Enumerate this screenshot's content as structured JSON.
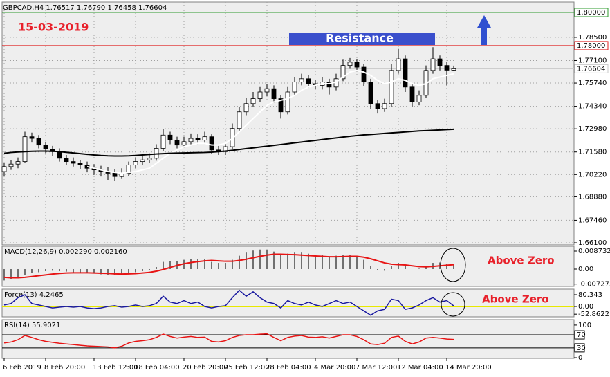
{
  "chart_data": [
    {
      "type": "candlestick",
      "title": "GBPCAD,H4  1.76517 1.76790 1.76458 1.76604",
      "date_label": "15-03-2019",
      "resistance_label": "Resistance",
      "categories": [
        "6 Feb 2019",
        null,
        null,
        null,
        null,
        null,
        "8 Feb 20:00",
        null,
        null,
        null,
        null,
        null,
        null,
        "13 Feb 12:00",
        null,
        null,
        null,
        null,
        null,
        "18 Feb 04:00",
        null,
        null,
        null,
        null,
        null,
        null,
        "20 Feb 20:00",
        null,
        null,
        null,
        null,
        null,
        "25 Feb 12:00",
        null,
        null,
        null,
        null,
        null,
        "28 Feb 04:00",
        null,
        null,
        null,
        null,
        null,
        null,
        "4 Mar 20:00",
        null,
        null,
        null,
        null,
        null,
        "7 Mar 12:00",
        null,
        null,
        null,
        null,
        null,
        "12 Mar 04:00",
        null,
        null,
        null,
        null,
        null,
        null,
        "14 Mar 20:00",
        null
      ],
      "open": [
        1.704,
        1.707,
        1.7085,
        1.71,
        1.725,
        1.724,
        1.72,
        1.7175,
        1.716,
        1.712,
        1.71,
        1.709,
        1.708,
        1.706,
        1.705,
        1.704,
        1.703,
        1.701,
        1.703,
        1.708,
        1.71,
        1.711,
        1.712,
        1.718,
        1.726,
        1.723,
        1.72,
        1.722,
        1.724,
        1.723,
        1.725,
        1.717,
        1.716,
        1.719,
        1.73,
        1.74,
        1.745,
        1.748,
        1.752,
        1.754,
        1.748,
        1.74,
        1.752,
        1.758,
        1.76,
        1.757,
        1.756,
        1.758,
        1.755,
        1.76,
        1.768,
        1.77,
        1.767,
        1.758,
        1.745,
        1.742,
        1.745,
        1.765,
        1.772,
        1.755,
        1.746,
        1.75,
        1.765,
        1.772,
        1.768,
        1.76517
      ],
      "high": [
        1.7095,
        1.711,
        1.7125,
        1.728,
        1.7275,
        1.726,
        1.722,
        1.7195,
        1.718,
        1.714,
        1.7125,
        1.711,
        1.71,
        1.7085,
        1.7075,
        1.7065,
        1.7055,
        1.706,
        1.71,
        1.7125,
        1.7135,
        1.715,
        1.7205,
        1.7295,
        1.728,
        1.725,
        1.725,
        1.727,
        1.7265,
        1.728,
        1.7265,
        1.7195,
        1.7215,
        1.733,
        1.743,
        1.7485,
        1.752,
        1.755,
        1.757,
        1.756,
        1.75,
        1.755,
        1.761,
        1.763,
        1.762,
        1.7595,
        1.761,
        1.76,
        1.763,
        1.7715,
        1.7725,
        1.772,
        1.769,
        1.76,
        1.747,
        1.748,
        1.769,
        1.778,
        1.774,
        1.757,
        1.753,
        1.768,
        1.779,
        1.774,
        1.77,
        1.7679
      ],
      "low": [
        1.7015,
        1.705,
        1.706,
        1.709,
        1.7215,
        1.718,
        1.715,
        1.7135,
        1.71,
        1.708,
        1.707,
        1.7055,
        1.7035,
        1.702,
        1.701,
        1.699,
        1.6985,
        1.6995,
        1.7015,
        1.706,
        1.708,
        1.709,
        1.7105,
        1.7165,
        1.7205,
        1.718,
        1.7185,
        1.72,
        1.7205,
        1.721,
        1.7145,
        1.714,
        1.714,
        1.7175,
        1.7285,
        1.738,
        1.743,
        1.746,
        1.7495,
        1.7455,
        1.736,
        1.7385,
        1.75,
        1.756,
        1.7545,
        1.7535,
        1.7535,
        1.7505,
        1.753,
        1.7585,
        1.766,
        1.7645,
        1.7555,
        1.742,
        1.739,
        1.74,
        1.743,
        1.763,
        1.752,
        1.743,
        1.744,
        1.7485,
        1.763,
        1.765,
        1.756,
        1.76458
      ],
      "close": [
        1.707,
        1.7085,
        1.71,
        1.725,
        1.724,
        1.72,
        1.7175,
        1.716,
        1.712,
        1.71,
        1.709,
        1.708,
        1.706,
        1.705,
        1.704,
        1.703,
        1.701,
        1.703,
        1.708,
        1.71,
        1.711,
        1.712,
        1.718,
        1.726,
        1.723,
        1.72,
        1.722,
        1.724,
        1.723,
        1.725,
        1.717,
        1.716,
        1.719,
        1.73,
        1.74,
        1.745,
        1.748,
        1.752,
        1.754,
        1.748,
        1.74,
        1.752,
        1.758,
        1.76,
        1.757,
        1.756,
        1.758,
        1.755,
        1.76,
        1.768,
        1.77,
        1.767,
        1.758,
        1.745,
        1.742,
        1.745,
        1.765,
        1.772,
        1.755,
        1.746,
        1.75,
        1.765,
        1.772,
        1.768,
        1.76517,
        1.76604
      ],
      "up_color": "#ffffff",
      "down_color": "#000000",
      "series": [
        {
          "color": "#ffffff",
          "values": [
            null,
            null,
            null,
            null,
            null,
            null,
            null,
            null,
            null,
            null,
            null,
            null,
            1.707,
            1.706,
            1.705,
            1.704,
            1.7035,
            1.703,
            1.7035,
            1.704,
            1.705,
            1.706,
            1.709,
            1.712,
            1.715,
            1.717,
            1.719,
            1.72,
            1.721,
            1.721,
            1.72,
            1.72,
            1.721,
            1.724,
            1.728,
            1.732,
            1.736,
            1.74,
            1.744,
            1.746,
            1.747,
            1.748,
            1.75,
            1.753,
            1.755,
            1.756,
            1.757,
            1.757,
            1.758,
            1.761,
            1.764,
            1.765,
            1.764,
            1.762,
            1.759,
            1.757,
            1.758,
            1.76,
            1.759,
            1.757,
            1.756,
            1.757,
            1.76,
            1.761,
            1.762,
            1.763
          ]
        },
        {
          "color": "#000000",
          "values": [
            1.715,
            1.7155,
            1.7158,
            1.716,
            1.7162,
            1.7163,
            1.7163,
            1.7162,
            1.716,
            1.7156,
            1.7152,
            1.7148,
            1.7144,
            1.714,
            1.7137,
            1.7135,
            1.7134,
            1.7134,
            1.7135,
            1.7137,
            1.714,
            1.7143,
            1.7146,
            1.7148,
            1.715,
            1.7151,
            1.7152,
            1.7153,
            1.7154,
            1.7155,
            1.7157,
            1.716,
            1.7163,
            1.7168,
            1.7173,
            1.7178,
            1.7183,
            1.7188,
            1.7193,
            1.7198,
            1.7203,
            1.7208,
            1.7213,
            1.7218,
            1.7223,
            1.7228,
            1.7233,
            1.7238,
            1.7243,
            1.7248,
            1.7253,
            1.7257,
            1.7261,
            1.7264,
            1.7267,
            1.727,
            1.7273,
            1.7276,
            1.7279,
            1.7282,
            1.7285,
            1.7287,
            1.7289,
            1.7291,
            1.7293,
            1.7295
          ]
        }
      ],
      "levels": [
        {
          "value": 1.8,
          "label": "1.80000",
          "color": "#2e9b2e"
        },
        {
          "value": 1.78,
          "label": "1.78000",
          "color": "#e02020"
        },
        {
          "value": 1.76604,
          "label": "1.76604",
          "color": "#c8c8c8"
        }
      ],
      "ylim": [
        1.65975,
        1.80626
      ],
      "yticks": [
        {
          "value": 1.785,
          "label": "1.78500"
        },
        {
          "value": 1.771,
          "label": "1.77100"
        },
        {
          "value": 1.7574,
          "label": "1.75740"
        },
        {
          "value": 1.7434,
          "label": "1.74340"
        },
        {
          "value": 1.7298,
          "label": "1.72980"
        },
        {
          "value": 1.7158,
          "label": "1.71580"
        },
        {
          "value": 1.7022,
          "label": "1.70220"
        },
        {
          "value": 1.6888,
          "label": "1.68880"
        },
        {
          "value": 1.6746,
          "label": "1.67460"
        },
        {
          "value": 1.661,
          "label": "1.66100"
        }
      ],
      "grid": true
    },
    {
      "type": "macd",
      "title": "MACD(12,26,9) 0.002290 0.002160",
      "annotation": "Above Zero",
      "histogram": {
        "color": "#707070",
        "values": [
          -0.0055,
          -0.005,
          -0.0045,
          -0.003,
          -0.002,
          -0.0015,
          -0.001,
          -0.0008,
          -0.001,
          -0.0012,
          -0.0015,
          -0.0018,
          -0.002,
          -0.0022,
          -0.0025,
          -0.0027,
          -0.003,
          -0.0028,
          -0.002,
          -0.0015,
          -0.001,
          -0.0005,
          0.001,
          0.0035,
          0.004,
          0.004,
          0.0045,
          0.005,
          0.0048,
          0.005,
          0.0035,
          0.003,
          0.003,
          0.0045,
          0.0065,
          0.008,
          0.009,
          0.0095,
          0.0095,
          0.0085,
          0.007,
          0.0075,
          0.008,
          0.008,
          0.0075,
          0.007,
          0.0068,
          0.0062,
          0.0065,
          0.007,
          0.007,
          0.0062,
          0.0045,
          0.0015,
          -0.0005,
          -0.0008,
          0.0015,
          0.003,
          0.0015,
          0.0,
          0.0002,
          0.0015,
          0.003,
          0.0032,
          0.0025,
          0.00229
        ]
      },
      "signal": {
        "color": "#e81414",
        "values": [
          -0.004,
          -0.0042,
          -0.0042,
          -0.004,
          -0.0036,
          -0.0032,
          -0.0028,
          -0.0024,
          -0.0021,
          -0.0019,
          -0.0018,
          -0.0018,
          -0.0018,
          -0.0019,
          -0.002,
          -0.0021,
          -0.0023,
          -0.0024,
          -0.0023,
          -0.0022,
          -0.0019,
          -0.0016,
          -0.001,
          -0.0002,
          0.0008,
          0.0018,
          0.0026,
          0.0032,
          0.0036,
          0.004,
          0.0042,
          0.004,
          0.0038,
          0.0038,
          0.0042,
          0.0048,
          0.0055,
          0.0062,
          0.0068,
          0.0072,
          0.0072,
          0.0071,
          0.007,
          0.0068,
          0.0066,
          0.0064,
          0.0062,
          0.006,
          0.006,
          0.0061,
          0.0062,
          0.0062,
          0.0058,
          0.005,
          0.004,
          0.003,
          0.0024,
          0.0022,
          0.002,
          0.0016,
          0.0012,
          0.0011,
          0.0013,
          0.0016,
          0.0019,
          0.00216
        ]
      },
      "ylim": [
        -0.00839,
        0.01108
      ],
      "yticks": [
        0.008732,
        {
          "value": 0,
          "label": "0.00"
        },
        -0.007273
      ]
    },
    {
      "type": "line",
      "title": "Force(13) 4.2465",
      "annotation": "Above Zero",
      "zero_line_color": "#e8e800",
      "series": [
        {
          "color": "#1a1aa0",
          "values": [
            10,
            20,
            60,
            80,
            20,
            10,
            0,
            -10,
            -5,
            0,
            -5,
            0,
            -10,
            -15,
            -10,
            0,
            5,
            -5,
            0,
            10,
            0,
            5,
            20,
            70,
            30,
            20,
            40,
            20,
            30,
            0,
            -10,
            0,
            5,
            60,
            110,
            70,
            100,
            60,
            30,
            20,
            -10,
            40,
            20,
            10,
            30,
            10,
            0,
            20,
            40,
            20,
            30,
            0,
            -30,
            -60,
            -30,
            -20,
            50,
            40,
            -20,
            -10,
            10,
            40,
            60,
            30,
            40,
            4.2465
          ]
        }
      ],
      "ylim": [
        -70.9,
        118.1
      ],
      "yticks": [
        80.343,
        {
          "value": 0,
          "label": "0.00"
        },
        -52.8622
      ]
    },
    {
      "type": "line",
      "title": "RSI(14) 55.9021",
      "series": [
        {
          "color": "#e81414",
          "values": [
            45,
            48,
            55,
            68,
            62,
            55,
            50,
            47,
            44,
            42,
            40,
            38,
            36,
            35,
            34,
            33,
            30,
            35,
            45,
            50,
            52,
            55,
            62,
            72,
            65,
            60,
            63,
            65,
            62,
            63,
            50,
            48,
            52,
            62,
            68,
            70,
            70,
            72,
            73,
            62,
            52,
            62,
            66,
            68,
            63,
            62,
            64,
            60,
            65,
            70,
            70,
            65,
            55,
            42,
            40,
            44,
            62,
            66,
            50,
            42,
            48,
            60,
            62,
            60,
            57,
            55.9021
          ]
        }
      ],
      "levels": [
        70,
        30
      ],
      "ylim": [
        -2.1,
        116.8
      ],
      "yticks": [
        100,
        0
      ]
    }
  ]
}
